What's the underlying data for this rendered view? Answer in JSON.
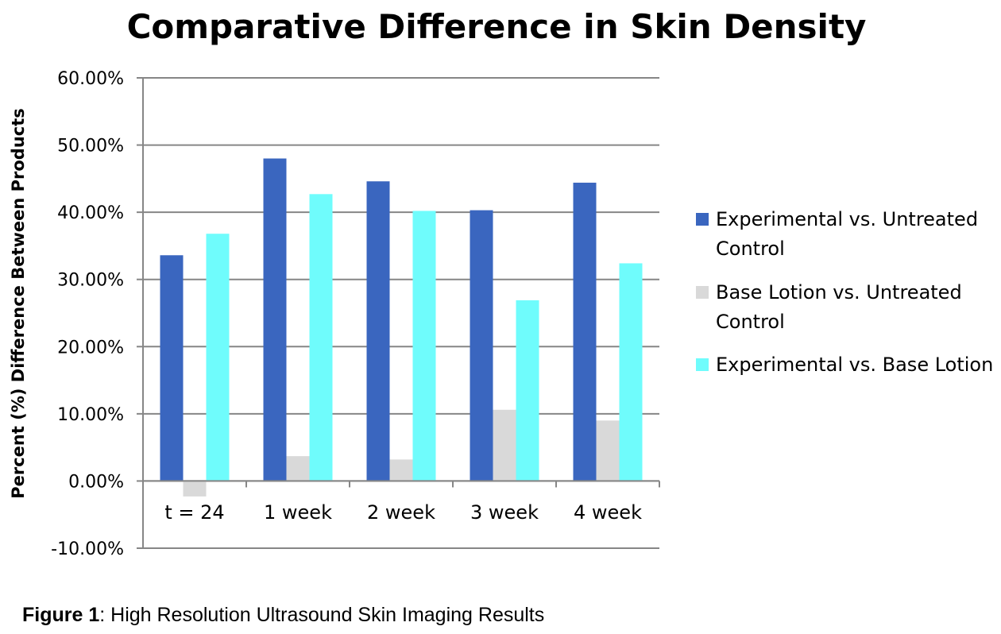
{
  "chart_data": {
    "type": "bar",
    "title": "Comparative Difference in Skin Density",
    "ylabel": "Percent (%) Difference Between Products",
    "xlabel": "",
    "categories": [
      "t = 24",
      "1 week",
      "2 week",
      "3 week",
      "4 week"
    ],
    "yticks": [
      "-10.00%",
      "0.00%",
      "10.00%",
      "20.00%",
      "30.00%",
      "40.00%",
      "50.00%",
      "60.00%"
    ],
    "ylim": [
      -10,
      60
    ],
    "grid": true,
    "legend_position": "right",
    "series": [
      {
        "name_lines": [
          "Experimental vs. Untreated",
          "Control"
        ],
        "color": "#3a66bf",
        "values": [
          33.6,
          48.0,
          44.6,
          40.3,
          44.4
        ]
      },
      {
        "name_lines": [
          "Base Lotion vs. Untreated",
          "Control"
        ],
        "color": "#d9d9d9",
        "values": [
          -2.3,
          3.7,
          3.2,
          10.6,
          9.0
        ]
      },
      {
        "name_lines": [
          "Experimental vs. Base Lotion"
        ],
        "color": "#6ffcfc",
        "values": [
          36.8,
          42.7,
          40.2,
          26.9,
          32.4
        ]
      }
    ]
  },
  "caption": {
    "label": "Figure 1",
    "text": ": High Resolution Ultrasound Skin Imaging Results"
  }
}
